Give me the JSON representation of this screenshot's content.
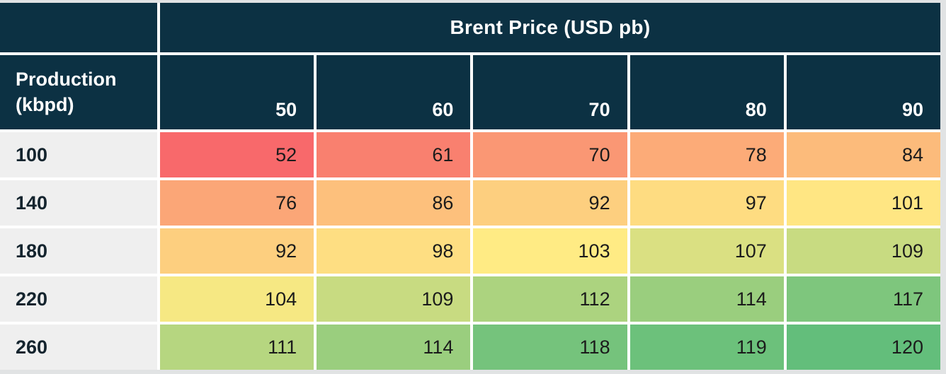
{
  "labels": {
    "col_group": "Brent Price (USD pb)",
    "row_header": "Production (kbpd)"
  },
  "colors": {
    "header_bg": "#0c3143",
    "header_text": "#ffffff",
    "row_label_bg": "#efefef",
    "row_label_text": "#14242e",
    "value_text": "#1b1b1b",
    "grid_line": "#ffffff",
    "page_bg": "#e1e3e4"
  },
  "chart_data": {
    "type": "heatmap",
    "title": "Brent Price (USD pb)",
    "xlabel": "Brent Price (USD pb)",
    "ylabel": "Production (kbpd)",
    "x": [
      50,
      60,
      70,
      80,
      90
    ],
    "y": [
      100,
      140,
      180,
      220,
      260
    ],
    "values": [
      [
        52,
        61,
        70,
        78,
        84
      ],
      [
        76,
        86,
        92,
        97,
        101
      ],
      [
        92,
        98,
        103,
        107,
        109
      ],
      [
        104,
        109,
        112,
        114,
        117
      ],
      [
        111,
        114,
        118,
        119,
        120
      ]
    ],
    "cell_colors": [
      [
        "#f8696b",
        "#f9806f",
        "#fa9774",
        "#fcab78",
        "#fcbb7b"
      ],
      [
        "#fba677",
        "#fdc07c",
        "#fdcf7f",
        "#fedc81",
        "#ffe683"
      ],
      [
        "#fdcf7f",
        "#fede82",
        "#ffeb84",
        "#dae082",
        "#c8db81"
      ],
      [
        "#f6e883",
        "#c8db81",
        "#acd37f",
        "#9ace7e",
        "#7ec67d"
      ],
      [
        "#b6d680",
        "#9ace7e",
        "#75c37c",
        "#6cc17b",
        "#63be7b"
      ]
    ],
    "colorscale": {
      "min": {
        "value": 52,
        "color": "#f8696b"
      },
      "mid": {
        "value": 103,
        "color": "#ffeb84"
      },
      "max": {
        "value": 120,
        "color": "#63be7b"
      }
    },
    "legend": "none",
    "grid": "white 4px separators"
  }
}
